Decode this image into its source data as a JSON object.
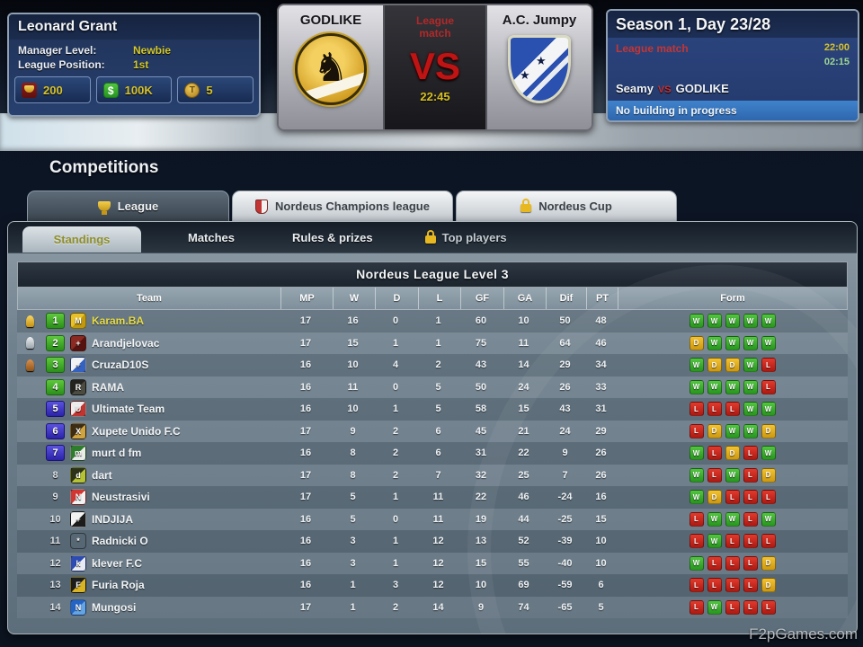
{
  "manager": {
    "name": "Leonard Grant",
    "fields": [
      {
        "label": "Manager Level:",
        "value": "Newbie"
      },
      {
        "label": "League Position:",
        "value": "1st"
      }
    ],
    "resources": [
      {
        "icon": "medal-icon",
        "value": "200"
      },
      {
        "icon": "cash-icon",
        "value": "100K",
        "glyph": "$"
      },
      {
        "icon": "token-icon",
        "value": "5",
        "glyph": "T"
      }
    ]
  },
  "match": {
    "home_team": "GODLIKE",
    "away_team": "A.C. Jumpy",
    "event_line1": "League",
    "event_line2": "match",
    "vs_label": "VS",
    "time": "22:45"
  },
  "season": {
    "title": "Season 1, Day 23/28",
    "event": "League match",
    "time_primary": "22:00",
    "time_secondary": "02:15",
    "fixture_home": "Seamy",
    "fixture_vs": "VS",
    "fixture_away": "GODLIKE",
    "status": "No building in progress"
  },
  "page_title": "Competitions",
  "tabs": [
    {
      "label": "League",
      "icon": "trophy",
      "active": true
    },
    {
      "label": "Nordeus Champions league",
      "icon": "champions-shield",
      "active": false
    },
    {
      "label": "Nordeus Cup",
      "icon": "lock",
      "active": false
    }
  ],
  "subtabs": [
    {
      "label": "Standings",
      "active": true
    },
    {
      "label": "Matches",
      "active": false
    },
    {
      "label": "Rules & prizes",
      "active": false
    },
    {
      "label": "Top players",
      "active": false,
      "locked": true
    }
  ],
  "table": {
    "title": "Nordeus League Level 3",
    "columns": [
      "Team",
      "MP",
      "W",
      "D",
      "L",
      "GF",
      "GA",
      "Dif",
      "PT",
      "Form"
    ],
    "rows": [
      {
        "pos": 1,
        "pos_style": "green",
        "trophy": "gold",
        "badge": [
          "#e8c228",
          "#c09a0c"
        ],
        "badge_letter": "M",
        "team": "Karam.BA",
        "highlight": true,
        "mp": 17,
        "w": 16,
        "d": 0,
        "l": 1,
        "gf": 60,
        "ga": 10,
        "dif": 50,
        "pt": 48,
        "form": [
          "W",
          "W",
          "W",
          "W",
          "W"
        ]
      },
      {
        "pos": 2,
        "pos_style": "green",
        "trophy": "silver",
        "badge": [
          "#8a2a22",
          "#55120e"
        ],
        "badge_letter": "+",
        "team": "Arandjelovac",
        "highlight": false,
        "mp": 17,
        "w": 15,
        "d": 1,
        "l": 1,
        "gf": 75,
        "ga": 11,
        "dif": 64,
        "pt": 46,
        "form": [
          "D",
          "W",
          "W",
          "W",
          "W"
        ]
      },
      {
        "pos": 3,
        "pos_style": "green",
        "trophy": "bronze",
        "badge": [
          "#f0f2f4",
          "#3462c2"
        ],
        "badge_letter": "+",
        "team": "CruzaD10S",
        "highlight": false,
        "mp": 16,
        "w": 10,
        "d": 4,
        "l": 2,
        "gf": 43,
        "ga": 14,
        "dif": 29,
        "pt": 34,
        "form": [
          "W",
          "D",
          "D",
          "W",
          "L"
        ]
      },
      {
        "pos": 4,
        "pos_style": "green",
        "trophy": null,
        "badge": [
          "#24241f",
          "#4c4c42"
        ],
        "badge_letter": "R",
        "team": "RAMA",
        "highlight": false,
        "mp": 16,
        "w": 11,
        "d": 0,
        "l": 5,
        "gf": 50,
        "ga": 24,
        "dif": 26,
        "pt": 33,
        "form": [
          "W",
          "W",
          "W",
          "W",
          "L"
        ]
      },
      {
        "pos": 5,
        "pos_style": "blue",
        "trophy": null,
        "badge": [
          "#ececec",
          "#c23430"
        ],
        "badge_letter": "U",
        "team": "Ultimate Team",
        "highlight": false,
        "mp": 16,
        "w": 10,
        "d": 1,
        "l": 5,
        "gf": 58,
        "ga": 15,
        "dif": 43,
        "pt": 31,
        "form": [
          "L",
          "L",
          "L",
          "W",
          "W"
        ]
      },
      {
        "pos": 6,
        "pos_style": "blue",
        "trophy": null,
        "badge": [
          "#3c2c14",
          "#cfa440"
        ],
        "badge_letter": "X",
        "team": "Xupete Unido F.C",
        "highlight": false,
        "mp": 17,
        "w": 9,
        "d": 2,
        "l": 6,
        "gf": 45,
        "ga": 21,
        "dif": 24,
        "pt": 29,
        "form": [
          "L",
          "D",
          "W",
          "W",
          "D"
        ]
      },
      {
        "pos": 7,
        "pos_style": "blue",
        "trophy": null,
        "badge": [
          "#2d7d2d",
          "#e9ece9"
        ],
        "badge_letter": "m",
        "team": "murt d fm",
        "highlight": false,
        "mp": 16,
        "w": 8,
        "d": 2,
        "l": 6,
        "gf": 31,
        "ga": 22,
        "dif": 9,
        "pt": 26,
        "form": [
          "W",
          "L",
          "D",
          "L",
          "W"
        ]
      },
      {
        "pos": 8,
        "pos_style": "plain",
        "trophy": null,
        "badge": [
          "#2c3218",
          "#b4c234"
        ],
        "badge_letter": "d",
        "team": "dart",
        "highlight": false,
        "mp": 17,
        "w": 8,
        "d": 2,
        "l": 7,
        "gf": 32,
        "ga": 25,
        "dif": 7,
        "pt": 26,
        "form": [
          "W",
          "L",
          "W",
          "L",
          "D"
        ]
      },
      {
        "pos": 9,
        "pos_style": "plain",
        "trophy": null,
        "badge": [
          "#d23632",
          "#f2f2f2"
        ],
        "badge_letter": "N",
        "team": "Neustrasivi",
        "highlight": false,
        "mp": 17,
        "w": 5,
        "d": 1,
        "l": 11,
        "gf": 22,
        "ga": 46,
        "dif": -24,
        "pt": 16,
        "form": [
          "W",
          "D",
          "L",
          "L",
          "L"
        ]
      },
      {
        "pos": 10,
        "pos_style": "plain",
        "trophy": null,
        "badge": [
          "#f2f2f2",
          "#1c1c1c"
        ],
        "badge_letter": "+",
        "team": "INDJIJA",
        "highlight": false,
        "mp": 16,
        "w": 5,
        "d": 0,
        "l": 11,
        "gf": 19,
        "ga": 44,
        "dif": -25,
        "pt": 15,
        "form": [
          "L",
          "W",
          "W",
          "L",
          "W"
        ]
      },
      {
        "pos": 11,
        "pos_style": "plain",
        "trophy": null,
        "badge": [
          "#dcc econ",
          "#b29242"
        ],
        "badge_letter": "*",
        "team": "Radnicki O",
        "highlight": false,
        "mp": 16,
        "w": 3,
        "d": 1,
        "l": 12,
        "gf": 13,
        "ga": 52,
        "dif": -39,
        "pt": 10,
        "form": [
          "L",
          "W",
          "L",
          "L",
          "L"
        ]
      },
      {
        "pos": 12,
        "pos_style": "plain",
        "trophy": null,
        "badge": [
          "#2c4cb4",
          "#e9ecf2"
        ],
        "badge_letter": "k",
        "team": "klever F.C",
        "highlight": false,
        "mp": 16,
        "w": 3,
        "d": 1,
        "l": 12,
        "gf": 15,
        "ga": 55,
        "dif": -40,
        "pt": 10,
        "form": [
          "W",
          "L",
          "L",
          "L",
          "D"
        ]
      },
      {
        "pos": 13,
        "pos_style": "plain",
        "trophy": null,
        "badge": [
          "#1c1c1c",
          "#d9b424"
        ],
        "badge_letter": "F",
        "team": "Furia Roja",
        "highlight": false,
        "mp": 16,
        "w": 1,
        "d": 3,
        "l": 12,
        "gf": 10,
        "ga": 69,
        "dif": -59,
        "pt": 6,
        "form": [
          "L",
          "L",
          "L",
          "L",
          "D"
        ]
      },
      {
        "pos": 14,
        "pos_style": "plain",
        "trophy": null,
        "badge": [
          "#2464c4",
          "#64a4e4"
        ],
        "badge_letter": "N",
        "team": "Mungosi",
        "highlight": false,
        "mp": 17,
        "w": 1,
        "d": 2,
        "l": 14,
        "gf": 9,
        "ga": 74,
        "dif": -65,
        "pt": 5,
        "form": [
          "L",
          "W",
          "L",
          "L",
          "L"
        ]
      }
    ]
  },
  "watermark": "F2pGames.com"
}
